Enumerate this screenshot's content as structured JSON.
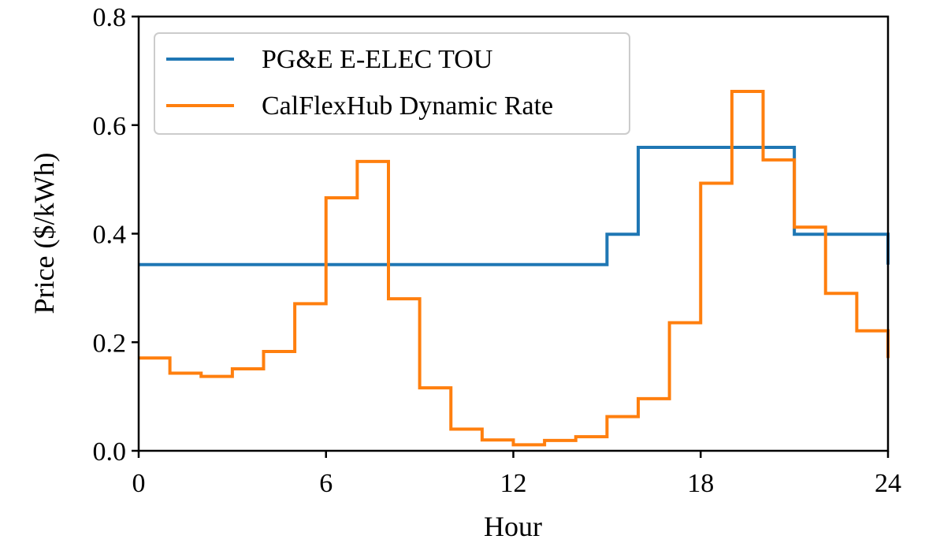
{
  "chart_data": {
    "type": "line",
    "step": "post",
    "title": "",
    "xlabel": "Hour",
    "ylabel": "Price ($/kWh)",
    "xlim": [
      0,
      24
    ],
    "ylim": [
      0,
      0.8
    ],
    "xticks": [
      0,
      6,
      12,
      18,
      24
    ],
    "xtick_labels": [
      "0",
      "6",
      "12",
      "18",
      "24"
    ],
    "yticks": [
      0,
      0.2,
      0.4,
      0.6,
      0.8
    ],
    "ytick_labels": [
      "0.0",
      "0.2",
      "0.4",
      "0.6",
      "0.8"
    ],
    "grid": false,
    "legend_position": "top-left",
    "x": [
      0,
      1,
      2,
      3,
      4,
      5,
      6,
      7,
      8,
      9,
      10,
      11,
      12,
      13,
      14,
      15,
      16,
      17,
      18,
      19,
      20,
      21,
      22,
      23,
      24
    ],
    "series": [
      {
        "name": "PG&E E-ELEC TOU",
        "color": "#1f77b4",
        "values": [
          0.343,
          0.343,
          0.343,
          0.343,
          0.343,
          0.343,
          0.343,
          0.343,
          0.343,
          0.343,
          0.343,
          0.343,
          0.343,
          0.343,
          0.343,
          0.399,
          0.559,
          0.559,
          0.559,
          0.559,
          0.559,
          0.399,
          0.399,
          0.399,
          0.343
        ]
      },
      {
        "name": "CalFlexHub Dynamic Rate",
        "color": "#ff7f0e",
        "values": [
          0.171,
          0.143,
          0.137,
          0.151,
          0.183,
          0.271,
          0.466,
          0.533,
          0.28,
          0.116,
          0.04,
          0.02,
          0.011,
          0.019,
          0.026,
          0.063,
          0.096,
          0.236,
          0.493,
          0.662,
          0.536,
          0.412,
          0.29,
          0.221,
          0.171
        ]
      }
    ]
  }
}
